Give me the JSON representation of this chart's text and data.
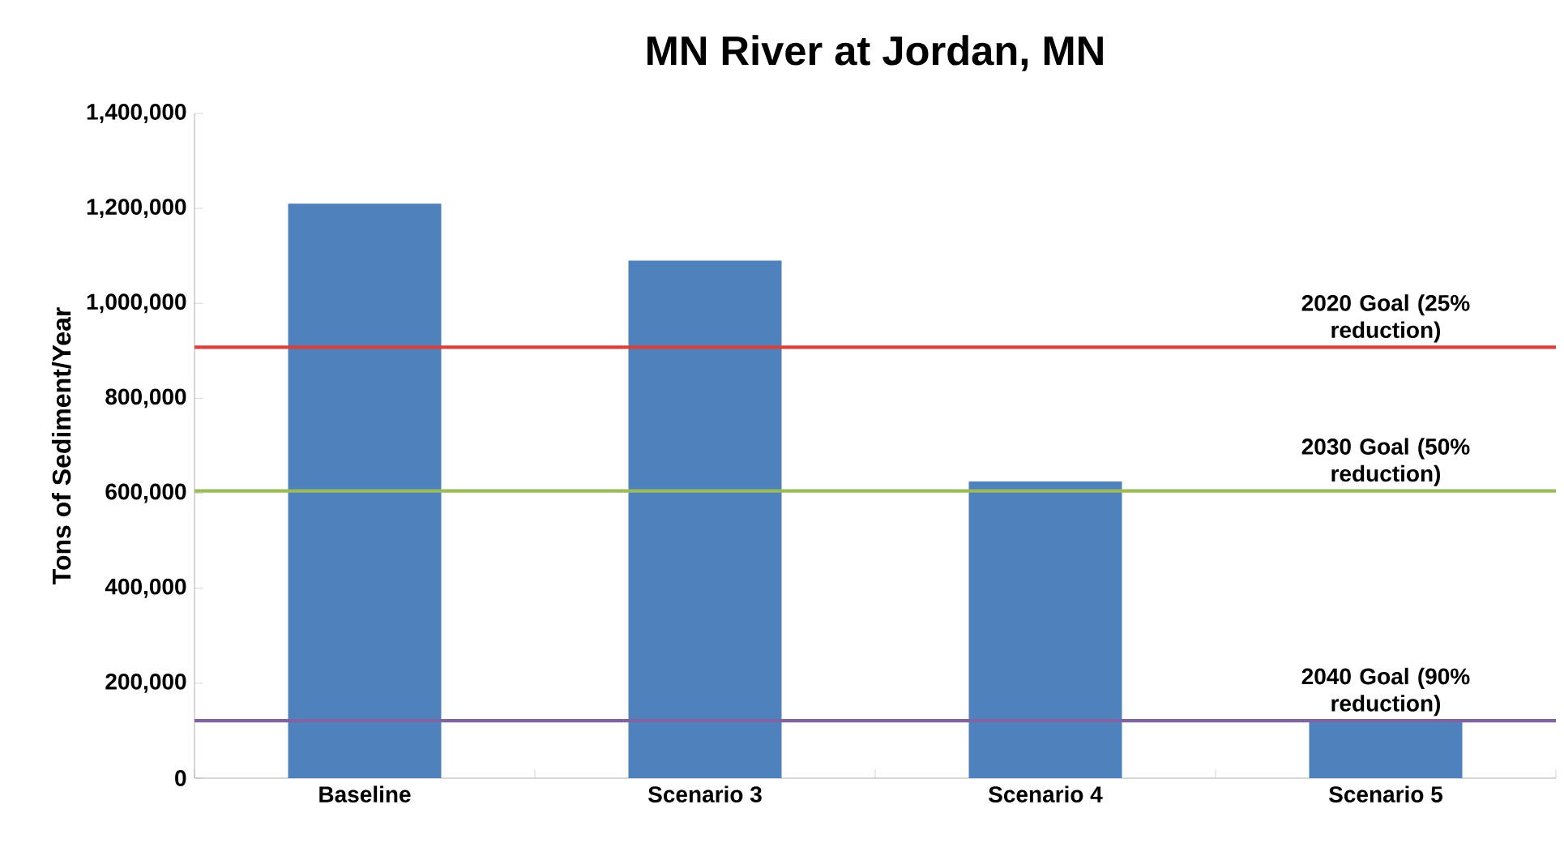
{
  "chart_data": {
    "type": "bar",
    "title": "MN River at Jordan, MN",
    "ylabel": "Tons of Sediment/Year",
    "categories": [
      "Baseline",
      "Scenario 3",
      "Scenario 4",
      "Scenario 5"
    ],
    "values": [
      1210000,
      1090000,
      625000,
      120000
    ],
    "color": "#4f81bd",
    "ylim": [
      0,
      1400000
    ],
    "yticks": [
      0,
      {
        "value": 200000,
        "label": "200,000"
      },
      {
        "value": 400000,
        "label": "400,000"
      },
      {
        "value": 600000,
        "label": "600,000"
      },
      {
        "value": 800000,
        "label": "800,000"
      },
      {
        "value": 1000000,
        "label": "1,000,000"
      },
      {
        "value": 1200000,
        "label": "1,200,000"
      },
      {
        "value": 1400000,
        "label": "1,400,000"
      }
    ],
    "ref_lines": [
      {
        "axis": "y",
        "value": 907500,
        "label": "2020 Goal (25% reduction)",
        "color": "#d9413a"
      },
      {
        "axis": "y",
        "value": 605000,
        "label": "2030 Goal (50% reduction)",
        "color": "#9bbb59"
      },
      {
        "axis": "y",
        "value": 121000,
        "label": "2040 Goal (90% reduction)",
        "color": "#8064a2"
      }
    ],
    "grid": false
  }
}
